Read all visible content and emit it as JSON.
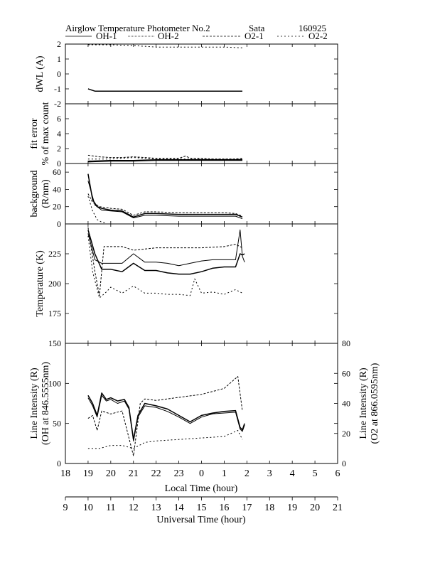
{
  "header": {
    "title": "Airglow Temperature Photometer No.2",
    "site": "Sata",
    "date": "160925"
  },
  "legend": [
    {
      "name": "OH-1",
      "dash": ""
    },
    {
      "name": "OH-2",
      "dash": "1,1"
    },
    {
      "name": "O2-1",
      "dash": "3,2"
    },
    {
      "name": "O2-2",
      "dash": "2,3"
    }
  ],
  "chart_data": [
    {
      "type": "line",
      "panel": "dwl",
      "ylabel": "dWL (A)",
      "ylim": [
        -2,
        2
      ],
      "yticks": [
        "-2",
        "-1",
        "0",
        "1",
        "2"
      ],
      "xlim": [
        18,
        30
      ],
      "series": [
        {
          "name": "OH-1",
          "x": [
            19.0,
            19.3,
            19.5,
            20.5,
            21.0,
            21.5,
            22.0,
            22.5,
            23.0,
            24.0,
            25.0,
            25.8
          ],
          "y": [
            -1.0,
            -1.15,
            -1.15,
            -1.15,
            -1.15,
            -1.15,
            -1.15,
            -1.15,
            -1.15,
            -1.15,
            -1.15,
            -1.15
          ]
        },
        {
          "name": "O2-2",
          "x": [
            19.0,
            20.0,
            21.0,
            22.0,
            23.0,
            24.0,
            25.0,
            25.8
          ],
          "y": [
            1.95,
            1.95,
            1.9,
            1.8,
            1.8,
            1.8,
            1.8,
            1.75
          ]
        }
      ]
    },
    {
      "type": "line",
      "panel": "fit_error",
      "ylabel": "fit error",
      "ylabel2": "% of max count",
      "ylim": [
        0,
        8
      ],
      "yticks": [
        "0",
        "2",
        "4",
        "6"
      ],
      "xlim": [
        18,
        30
      ],
      "series": [
        {
          "name": "OH-1",
          "x": [
            19.0,
            20.0,
            21.0,
            22.0,
            23.0,
            24.0,
            25.0,
            25.8
          ],
          "y": [
            0.3,
            0.4,
            0.4,
            0.5,
            0.5,
            0.5,
            0.5,
            0.5
          ]
        },
        {
          "name": "OH-2",
          "x": [
            19.0,
            20.0,
            21.0,
            22.0,
            23.0,
            24.0,
            25.0,
            25.8
          ],
          "y": [
            0.2,
            0.3,
            0.3,
            0.4,
            0.4,
            0.4,
            0.4,
            0.4
          ]
        },
        {
          "name": "O2-1",
          "x": [
            19.0,
            19.5,
            20.0,
            20.5,
            21.0,
            21.5,
            22.0,
            22.5,
            23.0,
            23.3,
            23.5,
            24.0,
            24.5,
            25.0,
            25.5,
            25.8
          ],
          "y": [
            1.1,
            0.9,
            0.8,
            0.8,
            0.9,
            0.8,
            0.7,
            0.7,
            0.7,
            1.0,
            0.7,
            0.7,
            0.6,
            0.6,
            0.6,
            0.7
          ]
        },
        {
          "name": "O2-2",
          "x": [
            19.0,
            20.0,
            21.0,
            22.0,
            23.0,
            24.0,
            25.0,
            25.8
          ],
          "y": [
            0.6,
            0.6,
            0.8,
            0.6,
            0.6,
            0.6,
            0.6,
            0.6
          ]
        }
      ]
    },
    {
      "type": "line",
      "panel": "background",
      "ylabel": "background",
      "ylabel2": "(R/nm)",
      "ylim": [
        0,
        70
      ],
      "yticks": [
        "0",
        "20",
        "40",
        "60"
      ],
      "xlim": [
        18,
        30
      ],
      "series": [
        {
          "name": "OH-1",
          "x": [
            19.0,
            19.2,
            19.4,
            19.6,
            20.0,
            20.5,
            21.0,
            21.5,
            22.0,
            23.0,
            24.0,
            25.0,
            25.5,
            25.8
          ],
          "y": [
            58,
            28,
            20,
            18,
            16,
            15,
            8,
            12,
            12,
            11,
            11,
            11,
            11,
            8
          ]
        },
        {
          "name": "OH-2",
          "x": [
            19.0,
            19.3,
            19.6,
            20.0,
            20.5,
            21.0,
            21.5,
            22.0,
            23.0,
            24.0,
            25.0,
            25.5,
            25.8
          ],
          "y": [
            50,
            22,
            16,
            15,
            14,
            7,
            10,
            10,
            9,
            9,
            9,
            9,
            6
          ]
        },
        {
          "name": "O2-1",
          "x": [
            19.0,
            19.2,
            19.5,
            19.8,
            20.0,
            20.5,
            21.0,
            21.5,
            22.0,
            23.0,
            24.0,
            25.0,
            25.5,
            25.8
          ],
          "y": [
            35,
            25,
            20,
            19,
            18,
            17,
            10,
            14,
            14,
            13,
            13,
            13,
            12,
            9
          ]
        },
        {
          "name": "O2-2",
          "x": [
            19.0,
            19.2,
            19.4,
            19.6,
            19.8
          ],
          "y": [
            32,
            15,
            5,
            2,
            1
          ]
        }
      ]
    },
    {
      "type": "line",
      "panel": "temperature",
      "ylabel": "Temperature (K)",
      "ylim": [
        150,
        250
      ],
      "yticks": [
        "175",
        "200",
        "225"
      ],
      "xlim": [
        18,
        30
      ],
      "series": [
        {
          "name": "OH-1",
          "x": [
            19.0,
            19.3,
            19.6,
            20.0,
            20.5,
            21.0,
            21.5,
            22.0,
            22.5,
            23.0,
            23.5,
            24.0,
            24.5,
            25.0,
            25.5,
            25.7,
            25.8,
            25.9
          ],
          "y": [
            245,
            225,
            212,
            212,
            210,
            217,
            211,
            211,
            209,
            208,
            208,
            210,
            213,
            214,
            214,
            225,
            224,
            225
          ]
        },
        {
          "name": "OH-2",
          "x": [
            19.0,
            19.3,
            19.6,
            20.0,
            20.5,
            21.0,
            21.5,
            22.0,
            22.5,
            23.0,
            23.5,
            24.0,
            24.5,
            25.0,
            25.5,
            25.7,
            25.8,
            25.9
          ],
          "y": [
            242,
            220,
            217,
            217,
            217,
            225,
            218,
            218,
            217,
            215,
            217,
            219,
            220,
            220,
            220,
            245,
            223,
            218
          ]
        },
        {
          "name": "O2-1",
          "x": [
            19.0,
            19.3,
            19.5,
            19.7,
            20.0,
            20.5,
            21.0,
            21.5,
            22.0,
            23.0,
            24.0,
            25.0,
            25.5,
            25.8
          ],
          "y": [
            247,
            210,
            190,
            231,
            231,
            231,
            228,
            229,
            230,
            230,
            230,
            231,
            233,
            230
          ]
        },
        {
          "name": "O2-2",
          "x": [
            19.0,
            19.2,
            19.5,
            19.8,
            20.0,
            20.5,
            21.0,
            21.5,
            22.0,
            22.5,
            23.0,
            23.5,
            23.7,
            24.0,
            24.5,
            25.0,
            25.5,
            25.8
          ],
          "y": [
            240,
            210,
            188,
            193,
            197,
            192,
            198,
            192,
            192,
            191,
            191,
            190,
            204,
            192,
            193,
            191,
            195,
            192
          ]
        }
      ]
    },
    {
      "type": "line",
      "panel": "intensity",
      "ylabel": "Line Intensity (R)",
      "ylabel2": "(OH at 846.5555nm)",
      "ylabel_right": "Line Intensity (R)",
      "ylabel_right2": "(O2 at 866.0595nm)",
      "ylim": [
        0,
        150
      ],
      "yticks": [
        "0",
        "50",
        "100",
        "150"
      ],
      "ylim_right": [
        0,
        80
      ],
      "yticks_right": [
        "0",
        "20",
        "40",
        "60",
        "80"
      ],
      "xlim": [
        18,
        30
      ],
      "series": [
        {
          "name": "OH-1",
          "axis": "left",
          "x": [
            19.0,
            19.2,
            19.4,
            19.6,
            19.8,
            20.0,
            20.3,
            20.6,
            20.8,
            21.0,
            21.2,
            21.5,
            22.0,
            22.5,
            23.0,
            23.5,
            24.0,
            24.5,
            25.0,
            25.5,
            25.7,
            25.8,
            25.9
          ],
          "y": [
            85,
            75,
            60,
            88,
            80,
            82,
            78,
            80,
            70,
            30,
            60,
            75,
            72,
            68,
            60,
            52,
            60,
            63,
            65,
            66,
            45,
            42,
            50
          ]
        },
        {
          "name": "OH-2",
          "axis": "left",
          "x": [
            19.0,
            19.2,
            19.4,
            19.6,
            19.8,
            20.0,
            20.3,
            20.6,
            20.8,
            21.0,
            21.2,
            21.5,
            22.0,
            22.5,
            23.0,
            23.5,
            24.0,
            24.5,
            25.0,
            25.5,
            25.7,
            25.8,
            25.9
          ],
          "y": [
            82,
            72,
            58,
            85,
            78,
            80,
            75,
            78,
            68,
            28,
            58,
            72,
            70,
            65,
            58,
            50,
            58,
            62,
            63,
            64,
            43,
            40,
            48
          ]
        },
        {
          "name": "O2-1",
          "axis": "right",
          "x": [
            19.0,
            19.2,
            19.4,
            19.6,
            20.0,
            20.5,
            21.0,
            21.3,
            21.5,
            22.0,
            23.0,
            24.0,
            25.0,
            25.6,
            25.8
          ],
          "y": [
            30,
            32,
            22,
            35,
            33,
            35,
            5,
            40,
            43,
            42,
            44,
            46,
            50,
            58,
            35
          ]
        },
        {
          "name": "O2-2",
          "axis": "right",
          "x": [
            19.0,
            19.5,
            20.0,
            20.5,
            21.0,
            21.5,
            22.0,
            23.0,
            24.0,
            25.0,
            25.6,
            25.8
          ],
          "y": [
            10,
            10,
            12,
            12,
            10,
            14,
            15,
            16,
            17,
            18,
            22,
            16
          ]
        }
      ]
    }
  ],
  "axes": {
    "local_time": {
      "label": "Local Time (hour)",
      "ticks": [
        "18",
        "19",
        "20",
        "21",
        "22",
        "23",
        "0",
        "1",
        "2",
        "3",
        "4",
        "5",
        "6"
      ]
    },
    "universal_time": {
      "label": "Universal Time (hour)",
      "ticks": [
        "9",
        "10",
        "11",
        "12",
        "13",
        "14",
        "15",
        "16",
        "17",
        "18",
        "19",
        "20",
        "21"
      ]
    }
  }
}
